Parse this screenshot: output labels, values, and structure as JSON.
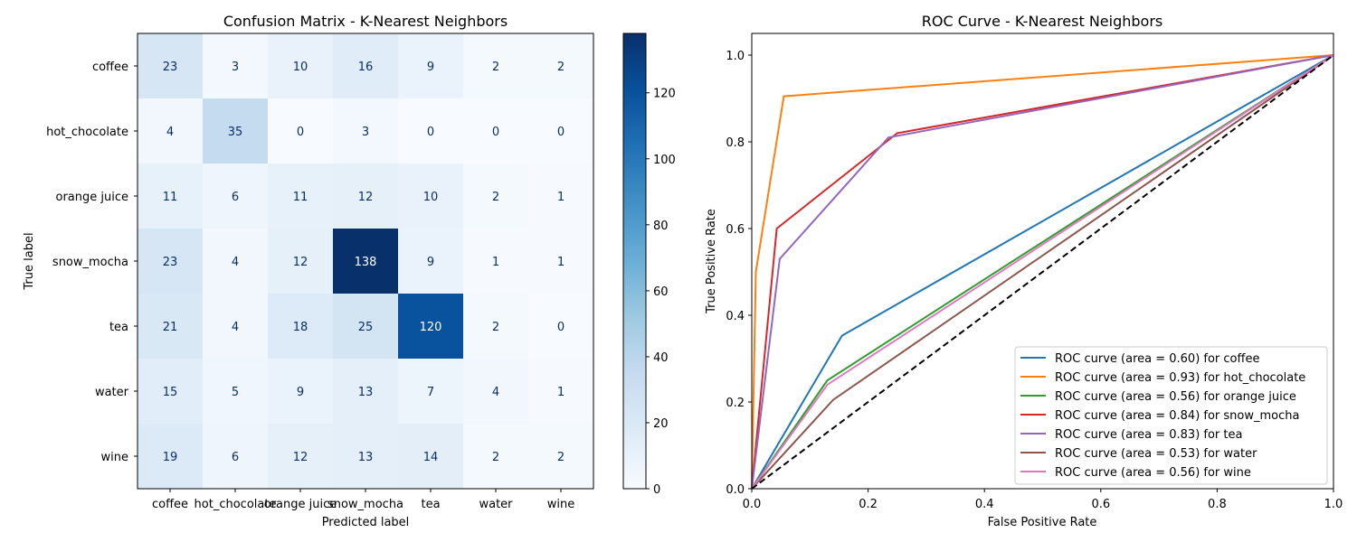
{
  "chart_data": [
    {
      "type": "heatmap",
      "title": "Confusion Matrix - K-Nearest Neighbors",
      "xlabel": "Predicted label",
      "ylabel": "True label",
      "x_categories": [
        "coffee",
        "hot_chocolate",
        "orange juice",
        "snow_mocha",
        "tea",
        "water",
        "wine"
      ],
      "y_categories": [
        "coffee",
        "hot_chocolate",
        "orange juice",
        "snow_mocha",
        "tea",
        "water",
        "wine"
      ],
      "values": [
        [
          23,
          3,
          10,
          16,
          9,
          2,
          2
        ],
        [
          4,
          35,
          0,
          3,
          0,
          0,
          0
        ],
        [
          11,
          6,
          11,
          12,
          10,
          2,
          1
        ],
        [
          23,
          4,
          12,
          138,
          9,
          1,
          1
        ],
        [
          21,
          4,
          18,
          25,
          120,
          2,
          0
        ],
        [
          15,
          5,
          9,
          13,
          7,
          4,
          1
        ],
        [
          19,
          6,
          12,
          13,
          14,
          2,
          2
        ]
      ],
      "colormap": "Blues",
      "colorbar": {
        "vmin": 0,
        "vmax": 138,
        "ticks": [
          0,
          20,
          40,
          60,
          80,
          100,
          120
        ]
      }
    },
    {
      "type": "line",
      "title": "ROC Curve - K-Nearest Neighbors",
      "xlabel": "False Positive Rate",
      "ylabel": "True Positive Rate",
      "xlim": [
        0,
        1
      ],
      "ylim": [
        0,
        1.05
      ],
      "xticks": [
        "0.0",
        "0.2",
        "0.4",
        "0.6",
        "0.8",
        "1.0"
      ],
      "yticks": [
        "0.0",
        "0.2",
        "0.4",
        "0.6",
        "0.8",
        "1.0"
      ],
      "legend_position": "lower-right",
      "series": [
        {
          "name": "ROC curve (area = 0.60) for coffee",
          "color": "#1f77b4",
          "x": [
            0,
            0.155,
            1
          ],
          "y": [
            0,
            0.353,
            1
          ]
        },
        {
          "name": "ROC curve (area = 0.93) for hot_chocolate",
          "color": "#ff7f0e",
          "x": [
            0,
            0.007,
            0.055,
            1
          ],
          "y": [
            0,
            0.5,
            0.905,
            1
          ]
        },
        {
          "name": "ROC curve (area = 0.56) for orange juice",
          "color": "#2ca02c",
          "x": [
            0,
            0.13,
            1
          ],
          "y": [
            0,
            0.25,
            1
          ]
        },
        {
          "name": "ROC curve (area = 0.84) for snow_mocha",
          "color": "#d62728",
          "x": [
            0,
            0.043,
            0.25,
            1
          ],
          "y": [
            0,
            0.6,
            0.82,
            1
          ]
        },
        {
          "name": "ROC curve (area = 0.83) for tea",
          "color": "#9467bd",
          "x": [
            0,
            0.048,
            0.235,
            1
          ],
          "y": [
            0,
            0.53,
            0.81,
            1
          ]
        },
        {
          "name": "ROC curve (area = 0.53) for water",
          "color": "#8c564b",
          "x": [
            0,
            0.14,
            1
          ],
          "y": [
            0,
            0.205,
            1
          ]
        },
        {
          "name": "ROC curve (area = 0.56) for wine",
          "color": "#e377c2",
          "x": [
            0,
            0.13,
            1
          ],
          "y": [
            0,
            0.24,
            1
          ]
        }
      ],
      "diagonal": {
        "style": "dashed",
        "color": "#000000",
        "x": [
          0,
          1
        ],
        "y": [
          0,
          1
        ]
      }
    }
  ]
}
